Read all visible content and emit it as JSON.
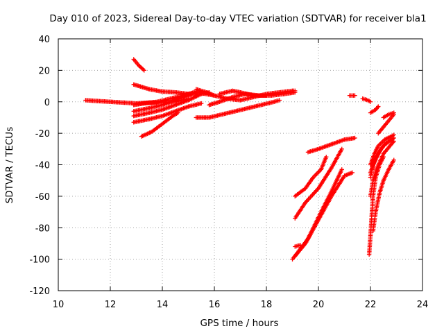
{
  "chart_data": {
    "type": "scatter",
    "title": "Day 010 of 2023, Sidereal Day-to-day VTEC variation (SDTVAR) for receiver bla1",
    "xlabel": "GPS time / hours",
    "ylabel": "SDTVAR / TECUs",
    "xlim": [
      10,
      24
    ],
    "ylim": [
      -120,
      40
    ],
    "xticks": [
      10,
      12,
      14,
      16,
      18,
      20,
      22,
      24
    ],
    "yticks": [
      -120,
      -100,
      -80,
      -60,
      -40,
      -20,
      0,
      20,
      40
    ],
    "grid": true,
    "legend": "none",
    "marker": "+",
    "color": "#ff0000",
    "tracks": [
      [
        [
          11.05,
          1
        ],
        [
          11.5,
          0.5
        ],
        [
          12.0,
          0
        ],
        [
          12.5,
          -0.5
        ],
        [
          13.0,
          -1
        ],
        [
          13.5,
          -0.5
        ],
        [
          14.0,
          -0.5
        ],
        [
          14.5,
          0
        ],
        [
          15.0,
          2
        ]
      ],
      [
        [
          12.9,
          27
        ],
        [
          13.1,
          23
        ],
        [
          13.3,
          20
        ]
      ],
      [
        [
          12.9,
          11
        ],
        [
          13.2,
          9.5
        ],
        [
          13.5,
          8
        ],
        [
          14.0,
          6.5
        ],
        [
          14.5,
          6
        ],
        [
          15.0,
          5
        ],
        [
          15.3,
          5
        ]
      ],
      [
        [
          12.9,
          -2
        ],
        [
          13.3,
          -1
        ],
        [
          13.8,
          0
        ],
        [
          14.3,
          2
        ],
        [
          14.8,
          4
        ],
        [
          15.2,
          6
        ],
        [
          15.5,
          5.5
        ],
        [
          16.0,
          4
        ]
      ],
      [
        [
          12.9,
          -6
        ],
        [
          13.5,
          -4
        ],
        [
          14.0,
          -2
        ],
        [
          14.5,
          1
        ],
        [
          15.0,
          4
        ],
        [
          15.3,
          6
        ]
      ],
      [
        [
          12.9,
          -9
        ],
        [
          13.5,
          -7
        ],
        [
          14.0,
          -5
        ],
        [
          14.5,
          -2
        ],
        [
          15.0,
          1
        ],
        [
          15.5,
          5
        ],
        [
          15.8,
          6
        ]
      ],
      [
        [
          12.9,
          -13
        ],
        [
          13.5,
          -11
        ],
        [
          14.0,
          -9
        ],
        [
          14.5,
          -6
        ],
        [
          15.0,
          -3
        ],
        [
          15.5,
          -1
        ]
      ],
      [
        [
          13.2,
          -22
        ],
        [
          13.6,
          -19
        ],
        [
          14.0,
          -14
        ],
        [
          14.4,
          -9
        ],
        [
          14.6,
          -7
        ]
      ],
      [
        [
          15.3,
          -10
        ],
        [
          15.8,
          -10
        ],
        [
          16.3,
          -8
        ],
        [
          16.8,
          -6
        ],
        [
          17.3,
          -4
        ],
        [
          17.8,
          -2
        ],
        [
          18.3,
          0
        ],
        [
          18.5,
          1
        ]
      ],
      [
        [
          15.3,
          8
        ],
        [
          15.7,
          6
        ],
        [
          16.0,
          4
        ],
        [
          16.5,
          2
        ],
        [
          17.0,
          1
        ],
        [
          17.5,
          3
        ],
        [
          18.0,
          5
        ],
        [
          18.5,
          6
        ],
        [
          19.0,
          7
        ],
        [
          19.1,
          7
        ]
      ],
      [
        [
          15.8,
          -2
        ],
        [
          16.2,
          0
        ],
        [
          16.7,
          3
        ],
        [
          17.2,
          5
        ],
        [
          17.7,
          4
        ],
        [
          18.2,
          4
        ],
        [
          18.7,
          5
        ],
        [
          19.1,
          6
        ]
      ],
      [
        [
          16.2,
          5
        ],
        [
          16.7,
          7
        ],
        [
          17.0,
          6
        ],
        [
          17.5,
          4
        ],
        [
          18.0,
          4
        ]
      ],
      [
        [
          19.0,
          -100
        ],
        [
          19.5,
          -90
        ],
        [
          20.0,
          -75
        ],
        [
          20.5,
          -60
        ],
        [
          21.0,
          -47
        ],
        [
          21.3,
          -45
        ]
      ],
      [
        [
          19.1,
          -98
        ],
        [
          19.6,
          -87
        ],
        [
          20.1,
          -70
        ],
        [
          20.5,
          -57
        ],
        [
          20.9,
          -43
        ]
      ],
      [
        [
          19.1,
          -92
        ],
        [
          19.3,
          -91
        ]
      ],
      [
        [
          19.1,
          -74
        ],
        [
          19.5,
          -64
        ],
        [
          20.0,
          -55
        ],
        [
          20.5,
          -42
        ],
        [
          20.9,
          -30
        ]
      ],
      [
        [
          19.1,
          -60
        ],
        [
          19.5,
          -55
        ],
        [
          19.8,
          -48
        ],
        [
          20.1,
          -43
        ],
        [
          20.3,
          -35
        ]
      ],
      [
        [
          19.6,
          -32
        ],
        [
          20.0,
          -30
        ],
        [
          20.5,
          -27
        ],
        [
          21.0,
          -24
        ],
        [
          21.4,
          -23
        ]
      ],
      [
        [
          21.2,
          4
        ],
        [
          21.4,
          4
        ]
      ],
      [
        [
          21.7,
          2
        ],
        [
          21.9,
          1
        ],
        [
          22.0,
          0
        ]
      ],
      [
        [
          22.0,
          -7
        ],
        [
          22.2,
          -5
        ],
        [
          22.3,
          -3
        ]
      ],
      [
        [
          21.95,
          -97
        ],
        [
          22.0,
          -85
        ],
        [
          22.05,
          -72
        ],
        [
          22.1,
          -60
        ],
        [
          22.2,
          -48
        ],
        [
          22.35,
          -40
        ],
        [
          22.5,
          -35
        ]
      ],
      [
        [
          22.0,
          -60
        ],
        [
          22.1,
          -50
        ],
        [
          22.25,
          -42
        ],
        [
          22.5,
          -33
        ],
        [
          22.75,
          -28
        ],
        [
          22.9,
          -25
        ]
      ],
      [
        [
          22.0,
          -48
        ],
        [
          22.1,
          -40
        ],
        [
          22.3,
          -33
        ],
        [
          22.5,
          -28
        ],
        [
          22.8,
          -24
        ],
        [
          22.9,
          -23
        ]
      ],
      [
        [
          22.0,
          -40
        ],
        [
          22.15,
          -33
        ],
        [
          22.3,
          -28
        ],
        [
          22.55,
          -24
        ],
        [
          22.8,
          -22
        ],
        [
          22.9,
          -21
        ]
      ],
      [
        [
          22.0,
          -45
        ],
        [
          22.2,
          -36
        ],
        [
          22.4,
          -30
        ],
        [
          22.6,
          -26
        ]
      ],
      [
        [
          22.1,
          -82
        ],
        [
          22.2,
          -70
        ],
        [
          22.35,
          -58
        ],
        [
          22.5,
          -50
        ],
        [
          22.7,
          -43
        ],
        [
          22.9,
          -37
        ]
      ],
      [
        [
          22.3,
          -20
        ],
        [
          22.5,
          -16
        ],
        [
          22.7,
          -12
        ],
        [
          22.9,
          -8
        ]
      ],
      [
        [
          22.5,
          -10
        ],
        [
          22.7,
          -8
        ],
        [
          22.9,
          -7
        ]
      ]
    ]
  }
}
